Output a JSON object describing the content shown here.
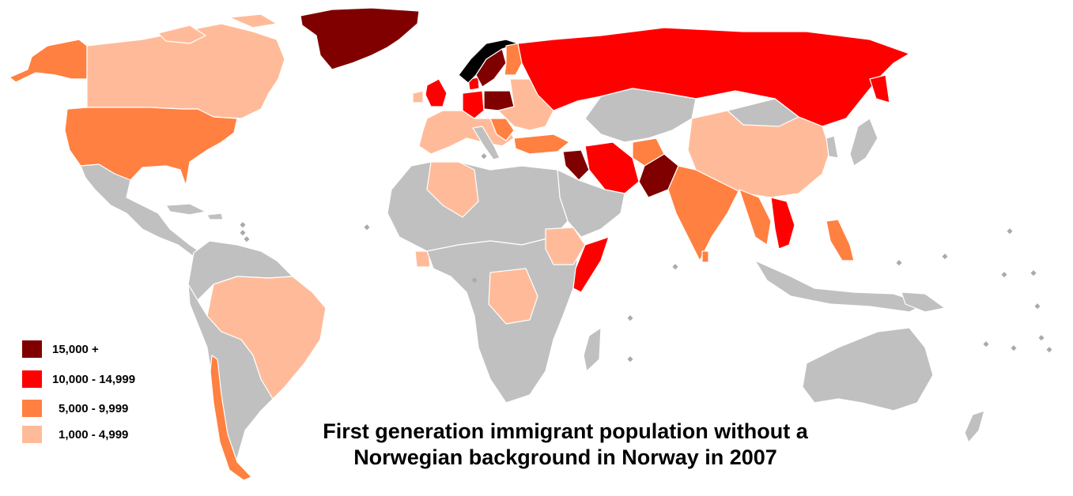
{
  "title": {
    "line1": "First generation immigrant population without a",
    "line2": "Norwegian background in Norway in 2007"
  },
  "legend": [
    {
      "label": "15,000 +",
      "color": "#800000"
    },
    {
      "label": "10,000 - 14,999",
      "color": "#ff0000"
    },
    {
      "label": "5,000 - 9,999",
      "color": "#ff8040"
    },
    {
      "label": "1,000 - 4,999",
      "color": "#ffbb99"
    }
  ],
  "colors": {
    "no_data": "#c0c0c0",
    "norway": "#000000",
    "border": "#ffffff",
    "background": "#ffffff"
  }
}
